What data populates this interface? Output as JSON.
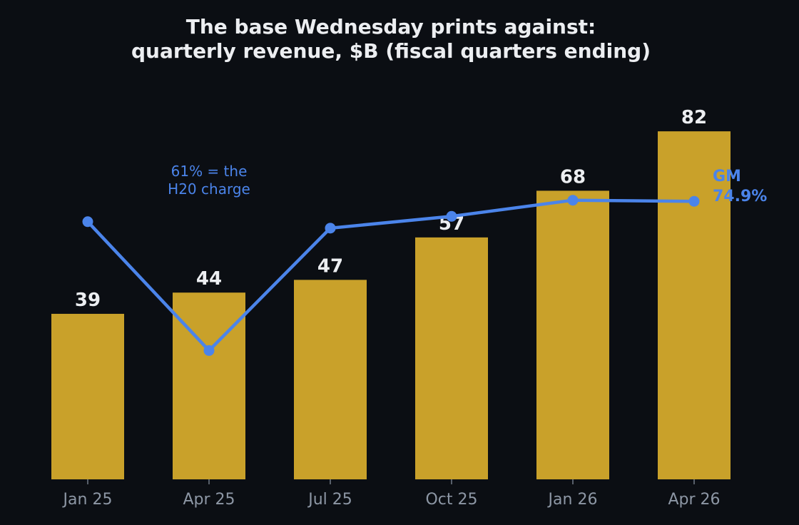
{
  "colors": {
    "background": "#0b0e13",
    "bar": "#c9a12a",
    "line": "#4b84ea",
    "text": "#eceef1",
    "tick_text": "#8d97a5",
    "axis": "#8d97a5"
  },
  "chart_data": {
    "type": "bar",
    "title": "The base Wednesday prints against:\nquarterly revenue, $B (fiscal quarters ending)",
    "title_lines": [
      "The base Wednesday prints against:",
      "quarterly revenue, $B (fiscal quarters ending)"
    ],
    "xlabel": "",
    "ylabel": "",
    "categories": [
      "Jan 25",
      "Apr 25",
      "Jul 25",
      "Oct 25",
      "Jan 26",
      "Apr 26"
    ],
    "series": [
      {
        "type": "bar",
        "values": [
          39,
          44,
          47,
          57,
          68,
          82
        ],
        "data_labels": [
          "39",
          "44",
          "47",
          "57",
          "68",
          "82"
        ]
      },
      {
        "type": "line",
        "values": [
          73.0,
          61.0,
          72.4,
          73.5,
          75.0,
          74.9
        ],
        "unit": "%"
      }
    ],
    "bar_ylim": [
      0,
      90
    ],
    "line_ylim": [
      49,
      80
    ],
    "grid": false,
    "legend": "none",
    "annotations": [
      {
        "text": "61% = the\nH20 charge",
        "lines": [
          "61% = the",
          "H20 charge"
        ],
        "category": "Apr 25"
      },
      {
        "text": "GM\n74.9%",
        "lines": [
          "GM",
          "74.9%"
        ],
        "category": "Apr 26"
      }
    ]
  }
}
